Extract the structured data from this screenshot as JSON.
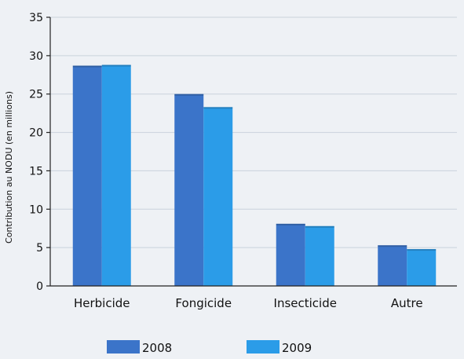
{
  "chart_data": {
    "type": "bar",
    "title": "",
    "xlabel": "",
    "ylabel": "Contribution au NODU (en millions)",
    "categories": [
      "Herbicide",
      "Fongicide",
      "Insecticide",
      "Autre"
    ],
    "series": [
      {
        "name": "2008",
        "values": [
          28.7,
          25.0,
          8.1,
          5.3
        ]
      },
      {
        "name": "2009",
        "values": [
          28.8,
          23.3,
          7.8,
          4.8
        ]
      }
    ],
    "ylim": [
      0,
      35
    ],
    "yticks": [
      "0",
      "5",
      "10",
      "15",
      "20",
      "25",
      "30",
      "35"
    ],
    "grid": true,
    "legend_position": "bottom",
    "colors": {
      "2008": "#3b74c9",
      "2009": "#2b9ce8",
      "grid": "#c9d2dc",
      "axis": "#222222"
    }
  }
}
